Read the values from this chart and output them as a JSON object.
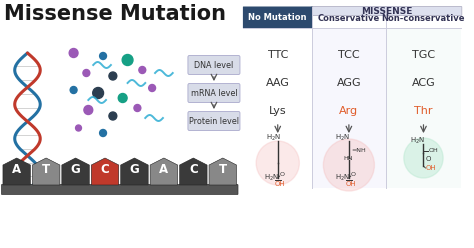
{
  "title": "Missense Mutation",
  "background_color": "#ffffff",
  "title_color": "#1a1a1a",
  "title_fontsize": 15,
  "table_header_missense": "MISSENSE",
  "table_col0_header": "No Mutation",
  "table_col1_header": "Conservative",
  "table_col2_header": "Non-conservative",
  "row_labels": [
    "DNA level",
    "mRNA level",
    "Protein level"
  ],
  "col0_values": [
    "TTC",
    "AAG",
    "Lys"
  ],
  "col1_values": [
    "TCC",
    "AGG",
    "Arg"
  ],
  "col2_values": [
    "TGC",
    "ACG",
    "Thr"
  ],
  "col0_color": "#333333",
  "col1_color": "#e05c2a",
  "col2_color": "#e05c2a",
  "header_bg_dark": "#2d4a6e",
  "header_bg_light": "#d4d8e8",
  "missense_bg": "#dde0ee",
  "nucleotide_letters": [
    "A",
    "T",
    "G",
    "C",
    "G",
    "A",
    "C",
    "T"
  ],
  "nucleotide_highlight": 3,
  "nucleotide_bg_dark": "#3a3a3a",
  "nucleotide_bg_mid": "#888888",
  "nucleotide_bg_highlight": "#c0392b",
  "nucleotide_text_color": "#ffffff"
}
